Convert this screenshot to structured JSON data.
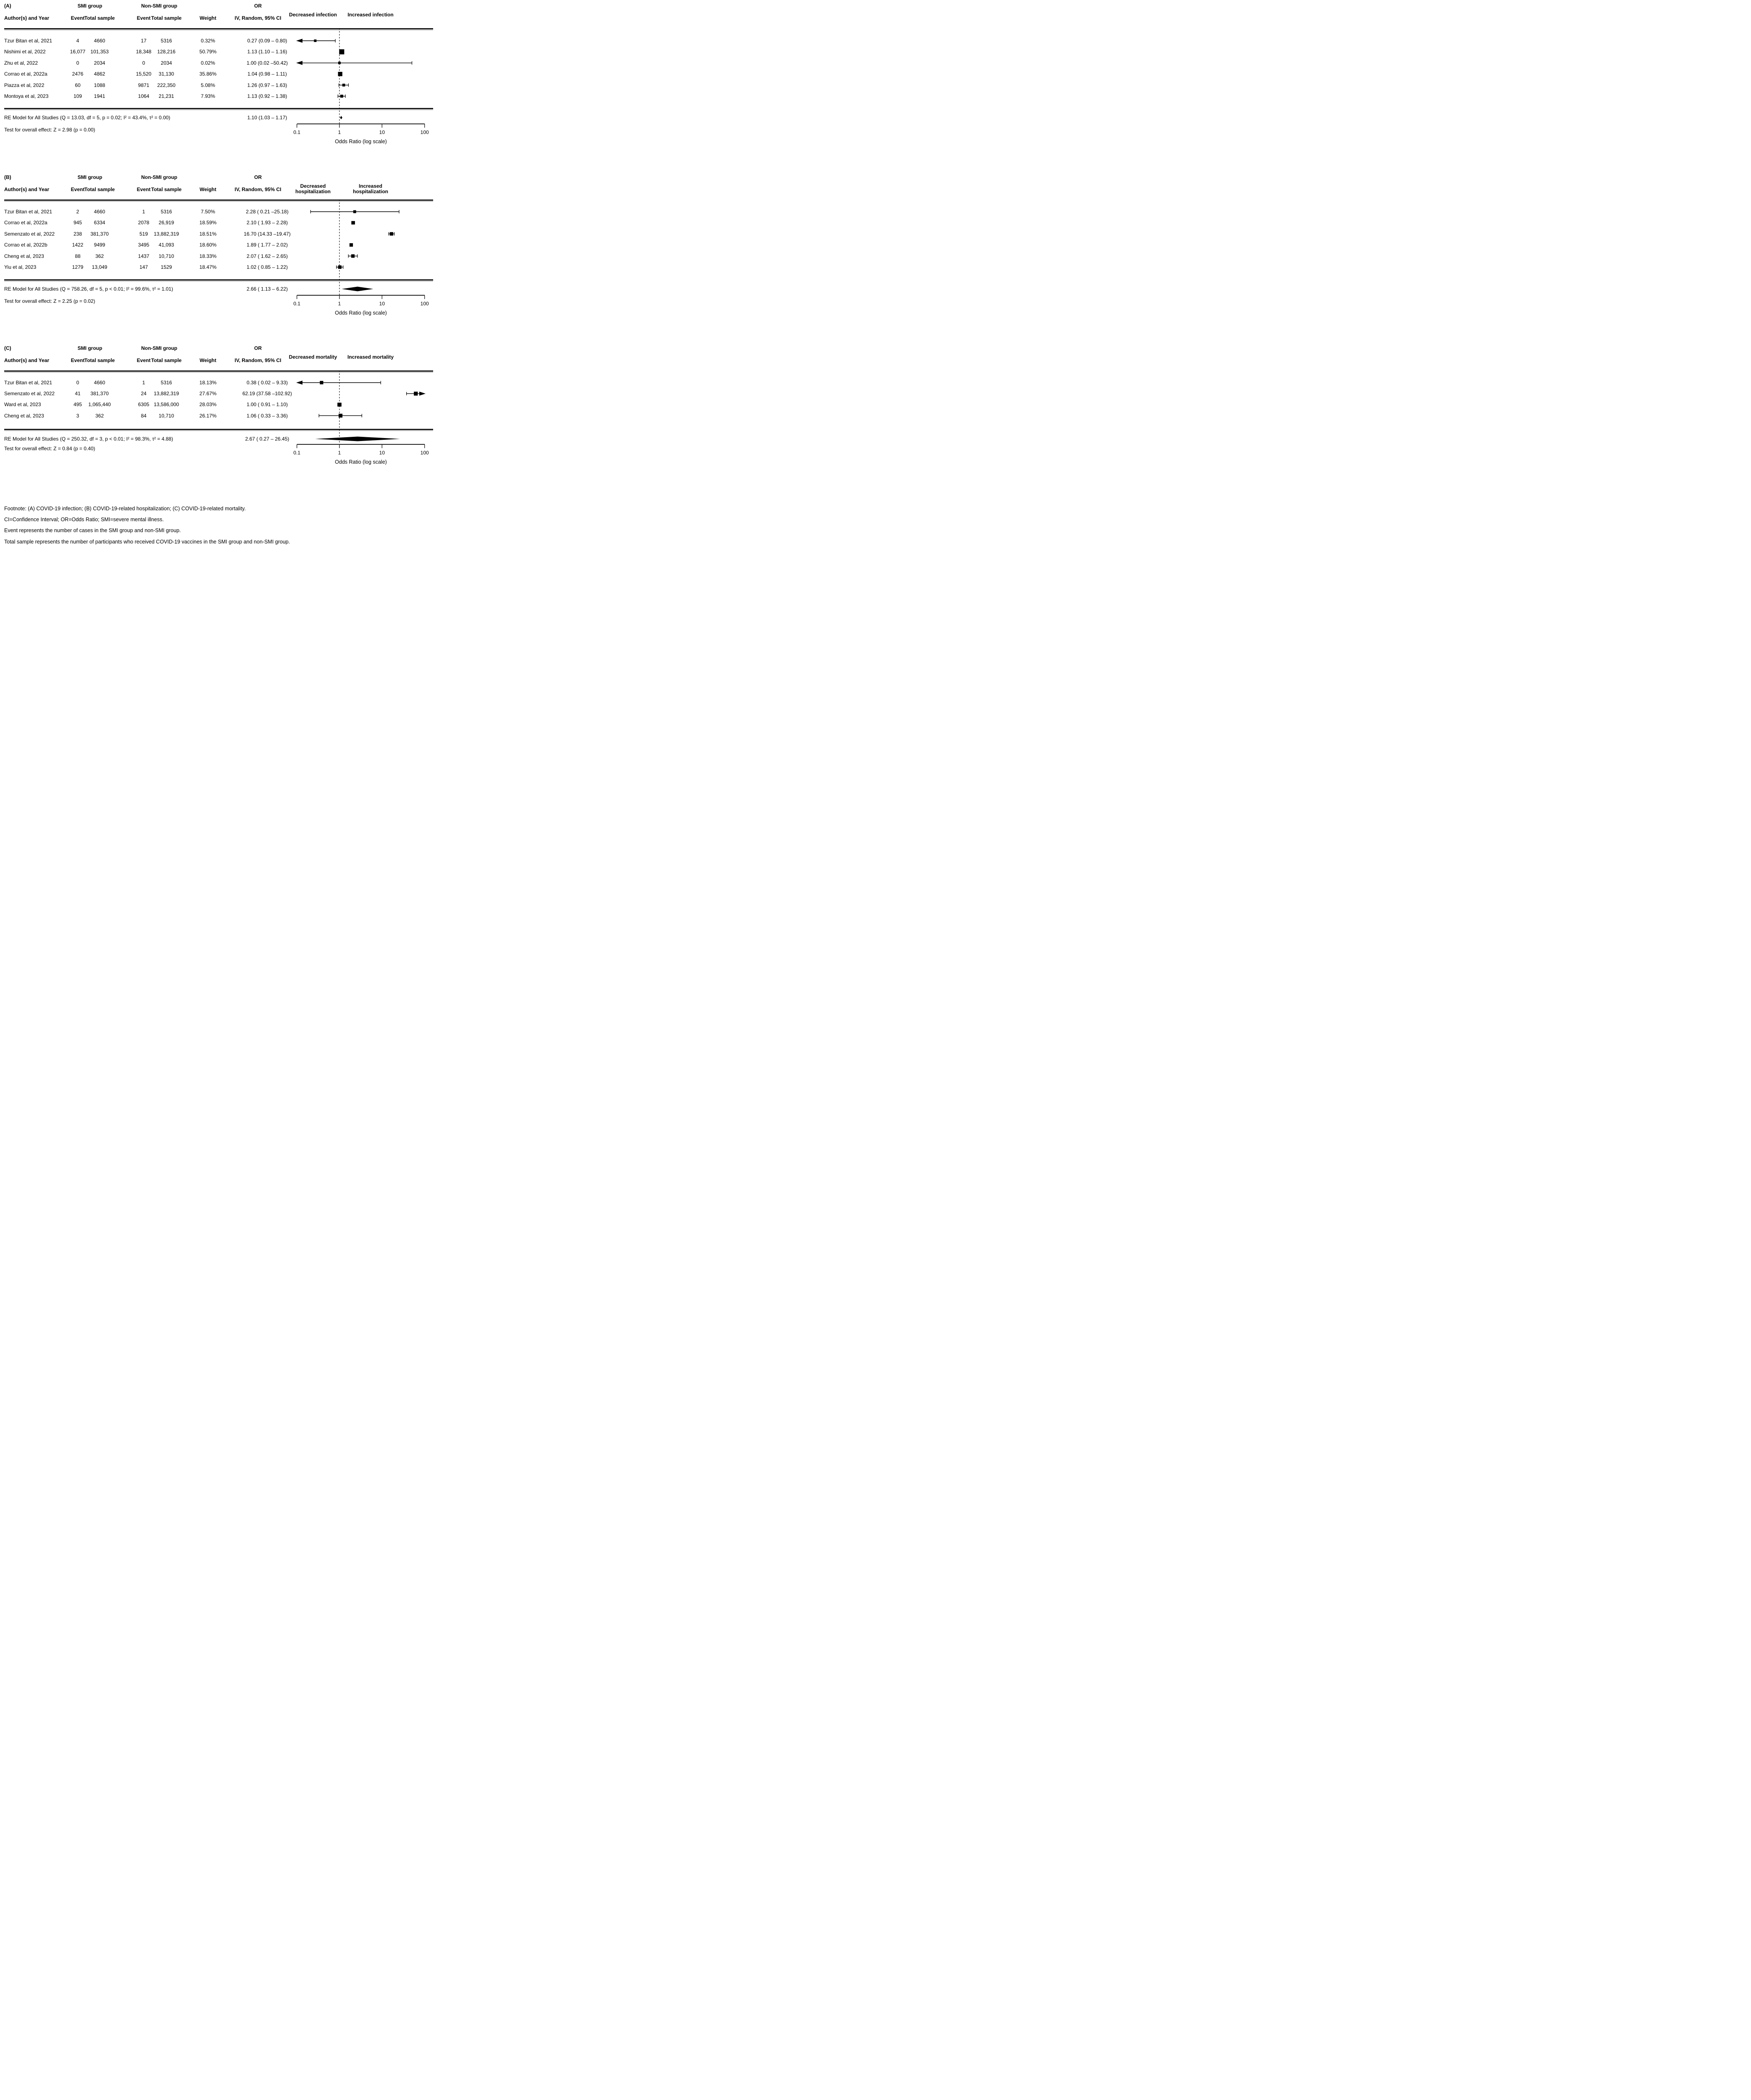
{
  "columns": {
    "author": "Author(s) and Year",
    "event": "Event",
    "total": "Total sample",
    "weight": "Weight",
    "or": "OR",
    "ci": "IV, Random, 95% CI",
    "smi_group": "SMI group",
    "nonsmi_group": "Non-SMI group"
  },
  "footnotes": {
    "line1": "Footnote: (A) COVID-19 infection; (B) COVID-19-related hospitalization; (C) COVID-19-related mortality.",
    "line2": "CI=Confidence Interval; OR=Odds Ratio; SMI=severe mental illness.",
    "line3": "Event represents the number of cases in the SMI group and non-SMI group.",
    "line4": "Total sample represents the number of participants who received COVID-19 vaccines in the SMI group and non-SMI group."
  },
  "chart_data": [
    {
      "type": "forest",
      "label": "(A)",
      "decreased_label": "Decreased infection",
      "increased_label": "Increased infection",
      "xlabel": "Odds Ratio (log scale)",
      "x_ticks": [
        "0.1",
        "1",
        "10",
        "100"
      ],
      "x_min": 0.1,
      "x_max": 100,
      "ref_line": 1,
      "studies": [
        {
          "author": "Tzur Bitan et al, 2021",
          "smi_event": "4",
          "smi_total": "4660",
          "nonsmi_event": "17",
          "nonsmi_total": "5316",
          "weight": "0.32%",
          "or_text": "0.27 (0.09 – 0.80)",
          "or": 0.27,
          "ci_low": 0.09,
          "ci_high": 0.8
        },
        {
          "author": "Nishimi et al, 2022",
          "smi_event": "16,077",
          "smi_total": "101,353",
          "nonsmi_event": "18,348",
          "nonsmi_total": "128,216",
          "weight": "50.79%",
          "or_text": "1.13 (1.10 – 1.16)",
          "or": 1.13,
          "ci_low": 1.1,
          "ci_high": 1.16
        },
        {
          "author": "Zhu et al, 2022",
          "smi_event": "0",
          "smi_total": "2034",
          "nonsmi_event": "0",
          "nonsmi_total": "2034",
          "weight": "0.02%",
          "or_text": "1.00 (0.02 –50.42)",
          "or": 1.0,
          "ci_low": 0.02,
          "ci_high": 50.42
        },
        {
          "author": "Corrao et al, 2022a",
          "smi_event": "2476",
          "smi_total": "4862",
          "nonsmi_event": "15,520",
          "nonsmi_total": "31,130",
          "weight": "35.86%",
          "or_text": "1.04 (0.98 – 1.11)",
          "or": 1.04,
          "ci_low": 0.98,
          "ci_high": 1.11
        },
        {
          "author": "Piazza et al, 2022",
          "smi_event": "60",
          "smi_total": "1088",
          "nonsmi_event": "9871",
          "nonsmi_total": "222,350",
          "weight": "5.08%",
          "or_text": "1.26 (0.97 – 1.63)",
          "or": 1.26,
          "ci_low": 0.97,
          "ci_high": 1.63
        },
        {
          "author": "Montoya et al, 2023",
          "smi_event": "109",
          "smi_total": "1941",
          "nonsmi_event": "1064",
          "nonsmi_total": "21,231",
          "weight": "7.93%",
          "or_text": "1.13 (0.92 – 1.38)",
          "or": 1.13,
          "ci_low": 0.92,
          "ci_high": 1.38
        }
      ],
      "summary": {
        "model_text": "RE Model for All Studies (Q = 13.03, df = 5, p = 0.02; I² = 43.4%, τ² = 0.00)",
        "or_text": "1.10 (1.03 – 1.17)",
        "or": 1.1,
        "ci_low": 1.03,
        "ci_high": 1.17
      },
      "overall_test_text": "Test for overall effect: Z = 2.98 (p = 0.00)"
    },
    {
      "type": "forest",
      "label": "(B)",
      "decreased_label": "Decreased hospitalization",
      "increased_label": "Increased hospitalization",
      "xlabel": "Odds Ratio (log scale)",
      "x_ticks": [
        "0.1",
        "1",
        "10",
        "100"
      ],
      "x_min": 0.1,
      "x_max": 100,
      "ref_line": 1,
      "studies": [
        {
          "author": "Tzur Bitan et al, 2021",
          "smi_event": "2",
          "smi_total": "4660",
          "nonsmi_event": "1",
          "nonsmi_total": "5316",
          "weight": "7.50%",
          "or_text": "2.28 ( 0.21 –25.18)",
          "or": 2.28,
          "ci_low": 0.21,
          "ci_high": 25.18
        },
        {
          "author": "Corrao et al, 2022a",
          "smi_event": "945",
          "smi_total": "6334",
          "nonsmi_event": "2078",
          "nonsmi_total": "26,919",
          "weight": "18.59%",
          "or_text": "2.10 ( 1.93 – 2.28)",
          "or": 2.1,
          "ci_low": 1.93,
          "ci_high": 2.28
        },
        {
          "author": "Semenzato et al, 2022",
          "smi_event": "238",
          "smi_total": "381,370",
          "nonsmi_event": "519",
          "nonsmi_total": "13,882,319",
          "weight": "18.51%",
          "or_text": "16.70 (14.33 –19.47)",
          "or": 16.7,
          "ci_low": 14.33,
          "ci_high": 19.47
        },
        {
          "author": "Corrao et al, 2022b",
          "smi_event": "1422",
          "smi_total": "9499",
          "nonsmi_event": "3495",
          "nonsmi_total": "41,093",
          "weight": "18.60%",
          "or_text": "1.89 ( 1.77 – 2.02)",
          "or": 1.89,
          "ci_low": 1.77,
          "ci_high": 2.02
        },
        {
          "author": "Cheng et al, 2023",
          "smi_event": "88",
          "smi_total": "362",
          "nonsmi_event": "1437",
          "nonsmi_total": "10,710",
          "weight": "18.33%",
          "or_text": "2.07 ( 1.62 – 2.65)",
          "or": 2.07,
          "ci_low": 1.62,
          "ci_high": 2.65
        },
        {
          "author": "Yiu et al, 2023",
          "smi_event": "1279",
          "smi_total": "13,049",
          "nonsmi_event": "147",
          "nonsmi_total": "1529",
          "weight": "18.47%",
          "or_text": "1.02 ( 0.85 – 1.22)",
          "or": 1.02,
          "ci_low": 0.85,
          "ci_high": 1.22
        }
      ],
      "summary": {
        "model_text": "RE Model for All Studies (Q = 758.26, df = 5, p < 0.01; I² = 99.6%, τ² = 1.01)",
        "or_text": "2.66 ( 1.13 – 6.22)",
        "or": 2.66,
        "ci_low": 1.13,
        "ci_high": 6.22
      },
      "overall_test_text": "Test for overall effect: Z = 2.25 (p = 0.02)"
    },
    {
      "type": "forest",
      "label": "(C)",
      "decreased_label": "Decreased mortality",
      "increased_label": "Increased mortality",
      "xlabel": "Odds Ratio (log scale)",
      "x_ticks": [
        "0.1",
        "1",
        "10",
        "100"
      ],
      "x_min": 0.1,
      "x_max": 100,
      "ref_line": 1,
      "studies": [
        {
          "author": "Tzur Bitan et al, 2021",
          "smi_event": "0",
          "smi_total": "4660",
          "nonsmi_event": "1",
          "nonsmi_total": "5316",
          "weight": "18.13%",
          "or_text": "0.38 ( 0.02 – 9.33)",
          "or": 0.38,
          "ci_low": 0.02,
          "ci_high": 9.33
        },
        {
          "author": "Semenzato et al, 2022",
          "smi_event": "41",
          "smi_total": "381,370",
          "nonsmi_event": "24",
          "nonsmi_total": "13,882,319",
          "weight": "27.67%",
          "or_text": "62.19 (37.58 –102.92)",
          "or": 62.19,
          "ci_low": 37.58,
          "ci_high": 102.92
        },
        {
          "author": "Ward et al, 2023",
          "smi_event": "495",
          "smi_total": "1,065,440",
          "nonsmi_event": "6305",
          "nonsmi_total": "13,586,000",
          "weight": "28.03%",
          "or_text": "1.00 ( 0.91 – 1.10)",
          "or": 1.0,
          "ci_low": 0.91,
          "ci_high": 1.1
        },
        {
          "author": "Cheng et al, 2023",
          "smi_event": "3",
          "smi_total": "362",
          "nonsmi_event": "84",
          "nonsmi_total": "10,710",
          "weight": "26.17%",
          "or_text": "1.06 ( 0.33 – 3.36)",
          "or": 1.06,
          "ci_low": 0.33,
          "ci_high": 3.36
        }
      ],
      "summary": {
        "model_text": "RE Model for All Studies (Q = 250.32, df = 3, p < 0.01; I² = 98.3%, τ² = 4.88)",
        "or_text": "2.67 ( 0.27 – 26.45)",
        "or": 2.67,
        "ci_low": 0.27,
        "ci_high": 26.45
      },
      "overall_test_text": "Test for overall effect: Z = 0.84 (p = 0.40)"
    }
  ]
}
